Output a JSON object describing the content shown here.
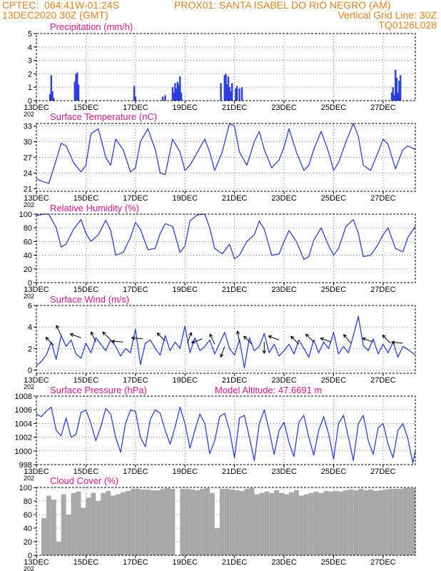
{
  "header": {
    "left1": "CPTEC:  064:41W-01:24S",
    "center1": "PROX01: SANTA ISABEL DO RIO NEGRO (AM)",
    "left2": "13DEC2020 30Z (GMT)",
    "right2": "Vertical Grid Line: 30Z",
    "right3": "TQ0126L028"
  },
  "colors": {
    "line": "#2a3fe0",
    "title": "#e0148c",
    "header": "#e8821e",
    "cloud": "#a8a8a8",
    "grid": "#888888"
  },
  "xaxis": {
    "start_label": "13DEC",
    "end_day_offset": 15.3,
    "tick_labels": [
      "13DEC",
      "15DEC",
      "17DEC",
      "19DEC",
      "21DEC",
      "23DEC",
      "25DEC",
      "27DEC"
    ],
    "tick_days": [
      0,
      2,
      4,
      6,
      8,
      10,
      12,
      14
    ],
    "stub": "202"
  },
  "chart_data": [
    {
      "id": "precip",
      "type": "bar",
      "title": "Precipitation (mm/h)",
      "ylim": [
        0,
        5
      ],
      "yticks": [
        0,
        1,
        2,
        3,
        4,
        5
      ],
      "series": [
        {
          "name": "precip",
          "x": [
            0.55,
            0.6,
            0.65,
            0.7,
            1.55,
            1.6,
            1.65,
            1.7,
            3.95,
            4.0,
            5.1,
            5.2,
            5.5,
            5.55,
            5.6,
            5.65,
            5.7,
            5.75,
            5.8,
            5.85,
            7.45,
            7.6,
            7.65,
            7.7,
            7.75,
            7.8,
            7.85,
            7.9,
            8.05,
            8.1,
            8.2,
            8.3,
            14.35,
            14.4,
            14.45,
            14.5,
            14.55,
            14.6,
            14.65,
            14.7
          ],
          "values": [
            0.5,
            1.9,
            0.7,
            0.2,
            1.4,
            2.0,
            2.1,
            1.2,
            1.1,
            0.3,
            0.3,
            0.4,
            1.0,
            0.6,
            1.3,
            0.9,
            1.4,
            1.2,
            1.8,
            0.6,
            1.3,
            1.9,
            2.0,
            1.2,
            1.8,
            1.0,
            0.7,
            1.3,
            0.9,
            1.1,
            0.9,
            1.0,
            0.6,
            1.0,
            0.4,
            2.3,
            1.7,
            0.6,
            1.5,
            1.9
          ]
        }
      ]
    },
    {
      "id": "temp",
      "type": "line",
      "title": "Surface Temperature (nC)",
      "ylim": [
        20.5,
        33.5
      ],
      "yticks": [
        21,
        24,
        27,
        30,
        33
      ],
      "series": [
        {
          "name": "temperature",
          "x": [
            0,
            0.3,
            0.5,
            0.8,
            1.0,
            1.2,
            1.5,
            1.8,
            2.0,
            2.2,
            2.5,
            2.8,
            3.0,
            3.2,
            3.5,
            3.8,
            4.0,
            4.2,
            4.5,
            4.8,
            5.0,
            5.2,
            5.5,
            5.8,
            6.0,
            6.2,
            6.5,
            6.8,
            7.0,
            7.2,
            7.5,
            7.8,
            8.0,
            8.2,
            8.5,
            8.8,
            9.0,
            9.2,
            9.5,
            9.8,
            10.0,
            10.2,
            10.5,
            10.8,
            11.0,
            11.2,
            11.5,
            11.8,
            12.0,
            12.2,
            12.5,
            12.8,
            13.0,
            13.2,
            13.5,
            13.8,
            14.0,
            14.2,
            14.5,
            14.8,
            15.0,
            15.3
          ],
          "values": [
            22.9,
            22.3,
            22.0,
            26.5,
            29.7,
            29.2,
            26.0,
            24.2,
            25.5,
            31.5,
            32.5,
            27.0,
            25.5,
            30.5,
            28.5,
            24.2,
            25.0,
            30.0,
            32.5,
            28.5,
            24.0,
            23.7,
            30.5,
            28.0,
            24.5,
            25.5,
            28.0,
            30.5,
            28.0,
            24.5,
            28.0,
            33.5,
            33.0,
            28.0,
            25.5,
            30.0,
            32.0,
            28.5,
            25.0,
            26.5,
            29.0,
            32.5,
            28.0,
            24.5,
            25.5,
            28.5,
            32.0,
            28.0,
            24.5,
            26.0,
            30.0,
            33.5,
            31.0,
            25.5,
            24.5,
            28.0,
            30.5,
            29.5,
            24.8,
            28.5,
            29.2,
            28.5
          ]
        }
      ]
    },
    {
      "id": "rh",
      "type": "line",
      "title": "Relative Humidity (%)",
      "ylim": [
        0,
        100
      ],
      "yticks": [
        0,
        20,
        40,
        60,
        80,
        100
      ],
      "series": [
        {
          "name": "humidity",
          "x": [
            0,
            0.3,
            0.5,
            0.8,
            1.0,
            1.2,
            1.5,
            1.8,
            2.0,
            2.2,
            2.5,
            2.8,
            3.0,
            3.2,
            3.5,
            3.8,
            4.0,
            4.2,
            4.5,
            4.8,
            5.0,
            5.2,
            5.5,
            5.8,
            6.0,
            6.2,
            6.5,
            6.8,
            7.0,
            7.2,
            7.5,
            7.8,
            8.0,
            8.2,
            8.5,
            8.8,
            9.0,
            9.2,
            9.5,
            9.8,
            10.0,
            10.2,
            10.5,
            10.8,
            11.0,
            11.2,
            11.5,
            11.8,
            12.0,
            12.2,
            12.5,
            12.8,
            13.0,
            13.2,
            13.5,
            13.8,
            14.0,
            14.2,
            14.5,
            14.8,
            15.0,
            15.3
          ],
          "values": [
            98,
            100,
            100,
            80,
            52,
            56,
            78,
            92,
            72,
            60,
            70,
            91,
            76,
            40,
            44,
            66,
            88,
            78,
            48,
            50,
            72,
            86,
            82,
            44,
            54,
            90,
            99,
            100,
            80,
            50,
            42,
            56,
            35,
            40,
            60,
            70,
            90,
            78,
            40,
            42,
            60,
            76,
            60,
            34,
            38,
            62,
            80,
            54,
            40,
            50,
            82,
            92,
            72,
            38,
            40,
            56,
            70,
            80,
            50,
            45,
            66,
            82
          ]
        }
      ]
    },
    {
      "id": "wind",
      "type": "line",
      "title": "Surface Wind (m/s)",
      "ylim": [
        -0.3,
        6
      ],
      "yticks": [
        0,
        2,
        4,
        6
      ],
      "series": [
        {
          "name": "wind_speed",
          "x": [
            0,
            0.2,
            0.4,
            0.6,
            0.8,
            1.0,
            1.2,
            1.4,
            1.6,
            1.8,
            2.0,
            2.2,
            2.4,
            2.6,
            2.8,
            3.0,
            3.2,
            3.4,
            3.6,
            3.8,
            4.0,
            4.2,
            4.4,
            4.6,
            4.8,
            5.0,
            5.2,
            5.4,
            5.6,
            5.8,
            6.0,
            6.2,
            6.4,
            6.6,
            6.8,
            7.0,
            7.2,
            7.4,
            7.6,
            7.8,
            8.0,
            8.2,
            8.4,
            8.6,
            8.8,
            9.0,
            9.2,
            9.4,
            9.6,
            9.8,
            10.0,
            10.2,
            10.4,
            10.6,
            10.8,
            11.0,
            11.2,
            11.4,
            11.6,
            11.8,
            12.0,
            12.2,
            12.4,
            12.6,
            12.8,
            13.0,
            13.2,
            13.4,
            13.6,
            13.8,
            14.0,
            14.2,
            14.4,
            14.6,
            14.8,
            15.0,
            15.3
          ],
          "values": [
            0.4,
            0.8,
            1.4,
            2.6,
            1.0,
            3.2,
            2.2,
            2.8,
            1.5,
            1.1,
            2.5,
            1.6,
            3.0,
            2.4,
            1.8,
            2.8,
            2.2,
            1.3,
            2.0,
            1.6,
            3.8,
            0.5,
            2.5,
            2.8,
            2.0,
            1.4,
            3.2,
            1.8,
            2.6,
            2.0,
            4.1,
            1.6,
            3.0,
            1.8,
            2.2,
            2.8,
            1.5,
            2.5,
            3.5,
            2.0,
            1.4,
            2.8,
            0.2,
            3.0,
            1.8,
            2.2,
            3.4,
            1.6,
            2.4,
            1.3,
            1.8,
            2.4,
            1.5,
            2.8,
            2.0,
            1.2,
            2.8,
            1.6,
            2.6,
            2.0,
            3.5,
            1.5,
            2.2,
            1.6,
            3.2,
            5.0,
            2.3,
            1.8,
            2.9,
            1.5,
            2.4,
            1.6,
            2.6,
            1.2,
            2.2,
            1.9,
            1.4
          ]
        }
      ],
      "arrows": [
        {
          "x": 0.7,
          "y": 2.3,
          "dir": 135
        },
        {
          "x": 1.0,
          "y": 3.2,
          "dir": 115
        },
        {
          "x": 1.8,
          "y": 3.0,
          "dir": 160
        },
        {
          "x": 2.4,
          "y": 2.6,
          "dir": 115
        },
        {
          "x": 3.0,
          "y": 2.8,
          "dir": 135
        },
        {
          "x": 3.5,
          "y": 2.6,
          "dir": 175
        },
        {
          "x": 4.3,
          "y": 2.9,
          "dir": 175
        },
        {
          "x": 5.2,
          "y": 2.7,
          "dir": 135
        },
        {
          "x": 6.1,
          "y": 2.5,
          "dir": 70
        },
        {
          "x": 6.7,
          "y": 2.9,
          "dir": 200
        },
        {
          "x": 7.2,
          "y": 2.4,
          "dir": 115
        },
        {
          "x": 7.6,
          "y": 2.2,
          "dir": 250
        },
        {
          "x": 8.2,
          "y": 2.6,
          "dir": 100
        },
        {
          "x": 8.7,
          "y": 2.4,
          "dir": 135
        },
        {
          "x": 9.2,
          "y": 2.6,
          "dir": 270
        },
        {
          "x": 9.8,
          "y": 2.8,
          "dir": 160
        },
        {
          "x": 10.6,
          "y": 2.4,
          "dir": 135
        },
        {
          "x": 11.2,
          "y": 2.6,
          "dir": 135
        },
        {
          "x": 11.9,
          "y": 2.6,
          "dir": 160
        },
        {
          "x": 12.7,
          "y": 2.5,
          "dir": 130
        },
        {
          "x": 13.6,
          "y": 2.6,
          "dir": 160
        },
        {
          "x": 14.3,
          "y": 2.5,
          "dir": 135
        },
        {
          "x": 14.8,
          "y": 2.5,
          "dir": 175
        }
      ]
    },
    {
      "id": "pres",
      "type": "line",
      "title": "Surface Pressure (hPa)",
      "extra_label": "Model Altitude: 47.6691 m",
      "ylim": [
        998,
        1008
      ],
      "yticks": [
        998,
        1000,
        1002,
        1004,
        1006,
        1008
      ],
      "series": [
        {
          "name": "pressure",
          "x": [
            0,
            0.2,
            0.4,
            0.6,
            0.8,
            1.0,
            1.2,
            1.4,
            1.6,
            1.8,
            2.0,
            2.2,
            2.4,
            2.6,
            2.8,
            3.0,
            3.2,
            3.4,
            3.6,
            3.8,
            4.0,
            4.2,
            4.4,
            4.6,
            4.8,
            5.0,
            5.2,
            5.4,
            5.6,
            5.8,
            6.0,
            6.2,
            6.4,
            6.6,
            6.8,
            7.0,
            7.2,
            7.4,
            7.6,
            7.8,
            8.0,
            8.2,
            8.4,
            8.6,
            8.8,
            9.0,
            9.2,
            9.4,
            9.6,
            9.8,
            10.0,
            10.2,
            10.4,
            10.6,
            10.8,
            11.0,
            11.2,
            11.4,
            11.6,
            11.8,
            12.0,
            12.2,
            12.4,
            12.6,
            12.8,
            13.0,
            13.2,
            13.4,
            13.6,
            13.8,
            14.0,
            14.2,
            14.4,
            14.6,
            14.8,
            15.0,
            15.2,
            15.3
          ],
          "values": [
            1005.4,
            1005.0,
            1005.8,
            1006.4,
            1003.0,
            1002.2,
            1004.8,
            1002.0,
            1002.4,
            1005.6,
            1006.0,
            1004.0,
            1001.5,
            1003.5,
            1006.2,
            1005.4,
            1002.0,
            999.8,
            1004.0,
            1006.0,
            1005.8,
            1002.0,
            1000.6,
            1004.6,
            1006.0,
            1005.5,
            1003.0,
            1001.0,
            1003.5,
            1006.4,
            1004.0,
            1000.4,
            1003.0,
            1005.4,
            1004.0,
            999.6,
            1001.5,
            1005.0,
            1005.5,
            1003.0,
            999.0,
            1004.8,
            1005.2,
            1002.0,
            998.6,
            1004.0,
            1006.0,
            1003.0,
            999.5,
            1003.0,
            1004.2,
            1001.2,
            999.2,
            1004.2,
            1005.2,
            1002.0,
            999.4,
            1003.0,
            1005.0,
            1002.5,
            998.8,
            1004.0,
            1005.2,
            1002.0,
            998.6,
            1004.0,
            1005.2,
            1001.5,
            999.5,
            1003.4,
            1004.0,
            1001.0,
            999.0,
            1003.0,
            1004.0,
            1001.8,
            998.2,
            1000.0
          ]
        }
      ]
    },
    {
      "id": "cloud",
      "type": "bar",
      "title": "Cloud Cover (%)",
      "ylim": [
        0,
        100
      ],
      "yticks": [
        0,
        20,
        40,
        60,
        80,
        100
      ],
      "series": [
        {
          "name": "cloud_cover",
          "x": [
            0.0,
            0.2,
            0.4,
            0.6,
            0.8,
            1.0,
            1.2,
            1.4,
            1.6,
            1.8,
            2.0,
            2.2,
            2.4,
            2.6,
            2.8,
            3.0,
            3.2,
            3.4,
            3.6,
            3.8,
            4.0,
            4.2,
            4.4,
            4.6,
            4.8,
            5.0,
            5.2,
            5.4,
            5.6,
            5.8,
            6.0,
            6.2,
            6.4,
            6.6,
            6.8,
            7.0,
            7.2,
            7.4,
            7.6,
            7.8,
            8.0,
            8.2,
            8.4,
            8.6,
            8.8,
            9.0,
            9.2,
            9.4,
            9.6,
            9.8,
            10.0,
            10.2,
            10.4,
            10.6,
            10.8,
            11.0,
            11.2,
            11.4,
            11.6,
            11.8,
            12.0,
            12.2,
            12.4,
            12.6,
            12.8,
            13.0,
            13.2,
            13.4,
            13.6,
            13.8,
            14.0,
            14.2,
            14.4,
            14.6,
            14.8,
            15.0,
            15.2
          ],
          "values": [
            0,
            55,
            88,
            82,
            20,
            90,
            60,
            92,
            94,
            70,
            85,
            92,
            80,
            92,
            95,
            88,
            90,
            93,
            95,
            98,
            98,
            97,
            97,
            96,
            96,
            98,
            99,
            98,
            0,
            98,
            98,
            97,
            96,
            98,
            99,
            92,
            40,
            98,
            98,
            97,
            96,
            95,
            98,
            99,
            90,
            92,
            94,
            92,
            96,
            92,
            90,
            93,
            96,
            88,
            90,
            92,
            94,
            92,
            95,
            94,
            95,
            94,
            96,
            97,
            96,
            98,
            96,
            97,
            95,
            96,
            97,
            98,
            98,
            98,
            99,
            99,
            99
          ]
        }
      ]
    }
  ]
}
